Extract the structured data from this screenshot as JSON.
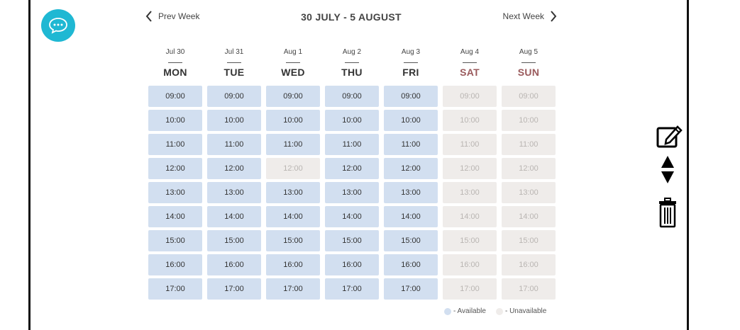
{
  "nav": {
    "prev_label": "Prev Week",
    "next_label": "Next Week",
    "title": "30 JULY - 5 AUGUST"
  },
  "days": [
    {
      "date": "Jul 30",
      "name": "MON",
      "weekend": false,
      "slots": [
        {
          "t": "09:00",
          "a": true
        },
        {
          "t": "10:00",
          "a": true
        },
        {
          "t": "11:00",
          "a": true
        },
        {
          "t": "12:00",
          "a": true
        },
        {
          "t": "13:00",
          "a": true
        },
        {
          "t": "14:00",
          "a": true
        },
        {
          "t": "15:00",
          "a": true
        },
        {
          "t": "16:00",
          "a": true
        },
        {
          "t": "17:00",
          "a": true
        }
      ]
    },
    {
      "date": "Jul 31",
      "name": "TUE",
      "weekend": false,
      "slots": [
        {
          "t": "09:00",
          "a": true
        },
        {
          "t": "10:00",
          "a": true
        },
        {
          "t": "11:00",
          "a": true
        },
        {
          "t": "12:00",
          "a": true
        },
        {
          "t": "13:00",
          "a": true
        },
        {
          "t": "14:00",
          "a": true
        },
        {
          "t": "15:00",
          "a": true
        },
        {
          "t": "16:00",
          "a": true
        },
        {
          "t": "17:00",
          "a": true
        }
      ]
    },
    {
      "date": "Aug 1",
      "name": "WED",
      "weekend": false,
      "slots": [
        {
          "t": "09:00",
          "a": true
        },
        {
          "t": "10:00",
          "a": true
        },
        {
          "t": "11:00",
          "a": true
        },
        {
          "t": "12:00",
          "a": false
        },
        {
          "t": "13:00",
          "a": true
        },
        {
          "t": "14:00",
          "a": true
        },
        {
          "t": "15:00",
          "a": true
        },
        {
          "t": "16:00",
          "a": true
        },
        {
          "t": "17:00",
          "a": true
        }
      ]
    },
    {
      "date": "Aug 2",
      "name": "THU",
      "weekend": false,
      "slots": [
        {
          "t": "09:00",
          "a": true
        },
        {
          "t": "10:00",
          "a": true
        },
        {
          "t": "11:00",
          "a": true
        },
        {
          "t": "12:00",
          "a": true
        },
        {
          "t": "13:00",
          "a": true
        },
        {
          "t": "14:00",
          "a": true
        },
        {
          "t": "15:00",
          "a": true
        },
        {
          "t": "16:00",
          "a": true
        },
        {
          "t": "17:00",
          "a": true
        }
      ]
    },
    {
      "date": "Aug 3",
      "name": "FRI",
      "weekend": false,
      "slots": [
        {
          "t": "09:00",
          "a": true
        },
        {
          "t": "10:00",
          "a": true
        },
        {
          "t": "11:00",
          "a": true
        },
        {
          "t": "12:00",
          "a": true
        },
        {
          "t": "13:00",
          "a": true
        },
        {
          "t": "14:00",
          "a": true
        },
        {
          "t": "15:00",
          "a": true
        },
        {
          "t": "16:00",
          "a": true
        },
        {
          "t": "17:00",
          "a": true
        }
      ]
    },
    {
      "date": "Aug 4",
      "name": "SAT",
      "weekend": true,
      "slots": [
        {
          "t": "09:00",
          "a": false
        },
        {
          "t": "10:00",
          "a": false
        },
        {
          "t": "11:00",
          "a": false
        },
        {
          "t": "12:00",
          "a": false
        },
        {
          "t": "13:00",
          "a": false
        },
        {
          "t": "14:00",
          "a": false
        },
        {
          "t": "15:00",
          "a": false
        },
        {
          "t": "16:00",
          "a": false
        },
        {
          "t": "17:00",
          "a": false
        }
      ]
    },
    {
      "date": "Aug 5",
      "name": "SUN",
      "weekend": true,
      "slots": [
        {
          "t": "09:00",
          "a": false
        },
        {
          "t": "10:00",
          "a": false
        },
        {
          "t": "11:00",
          "a": false
        },
        {
          "t": "12:00",
          "a": false
        },
        {
          "t": "13:00",
          "a": false
        },
        {
          "t": "14:00",
          "a": false
        },
        {
          "t": "15:00",
          "a": false
        },
        {
          "t": "16:00",
          "a": false
        },
        {
          "t": "17:00",
          "a": false
        }
      ]
    }
  ],
  "legend": {
    "available_label": "- Available",
    "unavailable_label": "- Unavailable",
    "available_color": "#d2dff0",
    "unavailable_color": "#efecea"
  },
  "colors": {
    "chat_button": "#1fb8d3",
    "weekend_text": "#9a5a5c"
  },
  "icons": {
    "chat": "chat-bubble-icon",
    "prev": "chevron-left-icon",
    "next": "chevron-right-icon",
    "edit": "edit-icon",
    "move": "move-up-down-icon",
    "delete": "trash-icon"
  }
}
